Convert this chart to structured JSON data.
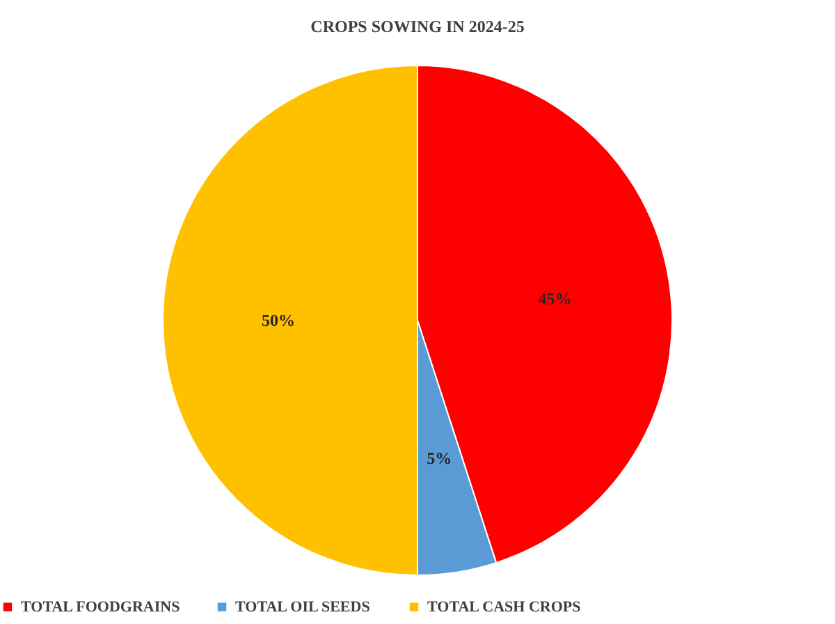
{
  "chart_data": {
    "type": "pie",
    "title": "CROPS SOWING IN 2024-25",
    "categories": [
      "TOTAL FOODGRAINS",
      "TOTAL OIL SEEDS",
      "TOTAL CASH CROPS"
    ],
    "values": [
      45,
      5,
      50
    ],
    "colors": [
      "#ff0000",
      "#5b9bd5",
      "#ffc000"
    ],
    "value_labels": [
      "45%",
      "5%",
      "50%"
    ],
    "legend": "bottom"
  }
}
